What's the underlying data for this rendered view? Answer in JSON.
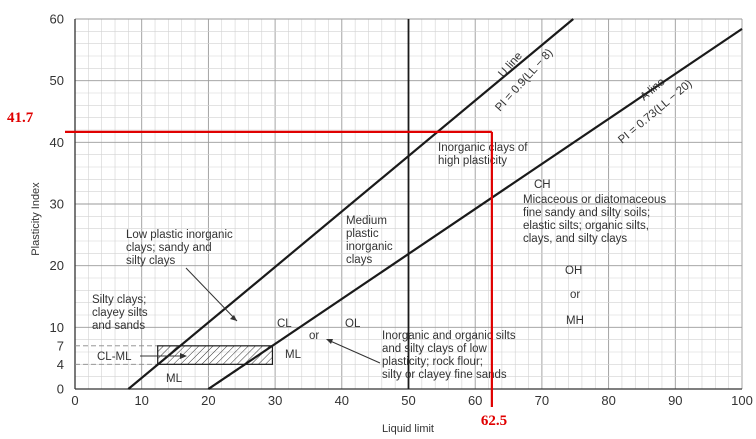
{
  "chart_data": {
    "type": "line",
    "xlabel": "Liquid limit",
    "ylabel": "Plasticity Index",
    "xlim": [
      0,
      100
    ],
    "ylim": [
      0,
      60
    ],
    "grid": true,
    "x_ticks": [
      0,
      10,
      20,
      30,
      40,
      50,
      60,
      70,
      80,
      90,
      100
    ],
    "y_ticks": [
      0,
      4,
      7,
      10,
      20,
      30,
      40,
      50,
      60
    ],
    "series": [
      {
        "name": "U line",
        "equation": "PI = 0.9(LL − 8)",
        "x": [
          8,
          74.7
        ],
        "y": [
          0,
          60
        ],
        "color": "#1a1a1a"
      },
      {
        "name": "A line",
        "equation": "PI = 0.73(LL − 20)",
        "x": [
          20,
          100
        ],
        "y": [
          0,
          58.4
        ],
        "color": "#1a1a1a"
      }
    ],
    "a_line_dashed_segment": {
      "x": [
        20,
        25.5
      ],
      "y": [
        0,
        4
      ]
    },
    "hatched_zone": {
      "x_left": 12.4,
      "x_right": 29.6,
      "y_bottom": 4,
      "y_top": 7
    },
    "vertical_divider": {
      "x": 50
    },
    "callout": {
      "x": 62.5,
      "y": 41.7,
      "x_label": "62.5",
      "y_label": "41.7",
      "color": "#e00000"
    },
    "annotations": {
      "u_line_name": "U line",
      "u_line_eq": "PI = 0.9(LL − 8)",
      "a_line_name": "A line",
      "a_line_eq": "PI = 0.73(LL − 20)",
      "inorganic_high_1": "Inorganic clays of",
      "inorganic_high_2": "high plasticity",
      "ch": "CH",
      "micaceous_1": "Micaceous or diatomaceous",
      "micaceous_2": "fine sandy and silty soils;",
      "micaceous_3": "elastic silts; organic silts,",
      "micaceous_4": "clays, and silty clays",
      "oh": "OH",
      "or_right": "or",
      "mh": "MH",
      "medium_1": "Medium",
      "medium_2": "plastic",
      "medium_3": "inorganic",
      "medium_4": "clays",
      "low_1": "Low plastic inorganic",
      "low_2": "clays; sandy and",
      "low_3": "silty clays",
      "silty_1": "Silty clays;",
      "silty_2": "clayey silts",
      "silty_3": "and sands",
      "cl": "CL",
      "or_mid": "or",
      "ol": "OL",
      "ml_mid": "ML",
      "cl_ml": "CL-ML",
      "ml_low": "ML",
      "inorg_org_1": "Inorganic and organic silts",
      "inorg_org_2": "and silty clays of low",
      "inorg_org_3": "plasticity; rock flour;",
      "inorg_org_4": "silty or clayey fine sands"
    }
  }
}
